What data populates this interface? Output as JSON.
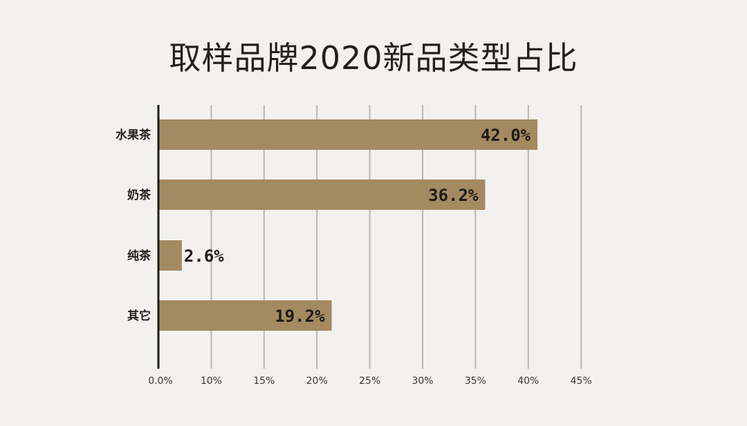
{
  "chart_data": {
    "type": "bar",
    "orientation": "horizontal",
    "title": "取样品牌2020新品类型占比",
    "categories": [
      "水果茶",
      "奶茶",
      "纯茶",
      "其它"
    ],
    "values": [
      42.0,
      36.2,
      2.6,
      19.2
    ],
    "value_labels": [
      "42.0%",
      "36.2%",
      "2.6%",
      "19.2%"
    ],
    "xticks": [
      "0.0%",
      "10%",
      "15%",
      "20%",
      "25%",
      "30%",
      "35%",
      "40%",
      "45%"
    ],
    "xlabel": "",
    "ylabel": "",
    "grid": true,
    "legend": "none",
    "colors": {
      "bar": "#a48a61",
      "grid": "#b9b6b2",
      "axis": "#1a1a1a",
      "background": "#f2f1ef"
    }
  }
}
